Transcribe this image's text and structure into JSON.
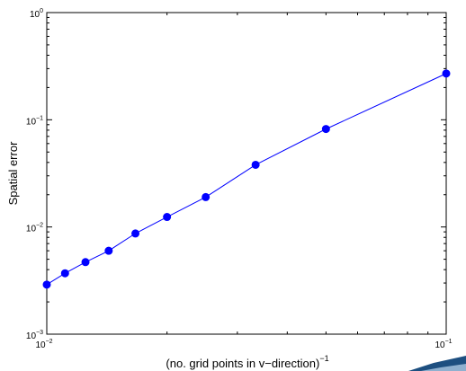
{
  "chart_data": {
    "type": "line",
    "xscale": "log",
    "yscale": "log",
    "xlim": [
      0.01,
      0.1
    ],
    "ylim": [
      0.001,
      1
    ],
    "xlabel": "(no. grid points in v−direction)",
    "xlabel_exponent": "−1",
    "ylabel": "Spatial error",
    "grid": false,
    "x_ticks": [
      {
        "value": 0.01,
        "base": "10",
        "exp": "−2"
      },
      {
        "value": 0.1,
        "base": "10",
        "exp": "−1"
      }
    ],
    "y_ticks": [
      {
        "value": 0.001,
        "base": "10",
        "exp": "−3"
      },
      {
        "value": 0.01,
        "base": "10",
        "exp": "−2"
      },
      {
        "value": 0.1,
        "base": "10",
        "exp": "−1"
      },
      {
        "value": 1,
        "base": "10",
        "exp": "0"
      }
    ],
    "series": [
      {
        "color": "#0000ff",
        "marker": "circle",
        "x": [
          0.01,
          0.01111,
          0.0125,
          0.01429,
          0.01667,
          0.02,
          0.025,
          0.03333,
          0.05,
          0.1
        ],
        "y": [
          0.0029,
          0.0037,
          0.0047,
          0.006,
          0.0087,
          0.0124,
          0.019,
          0.038,
          0.082,
          0.27
        ]
      }
    ]
  }
}
